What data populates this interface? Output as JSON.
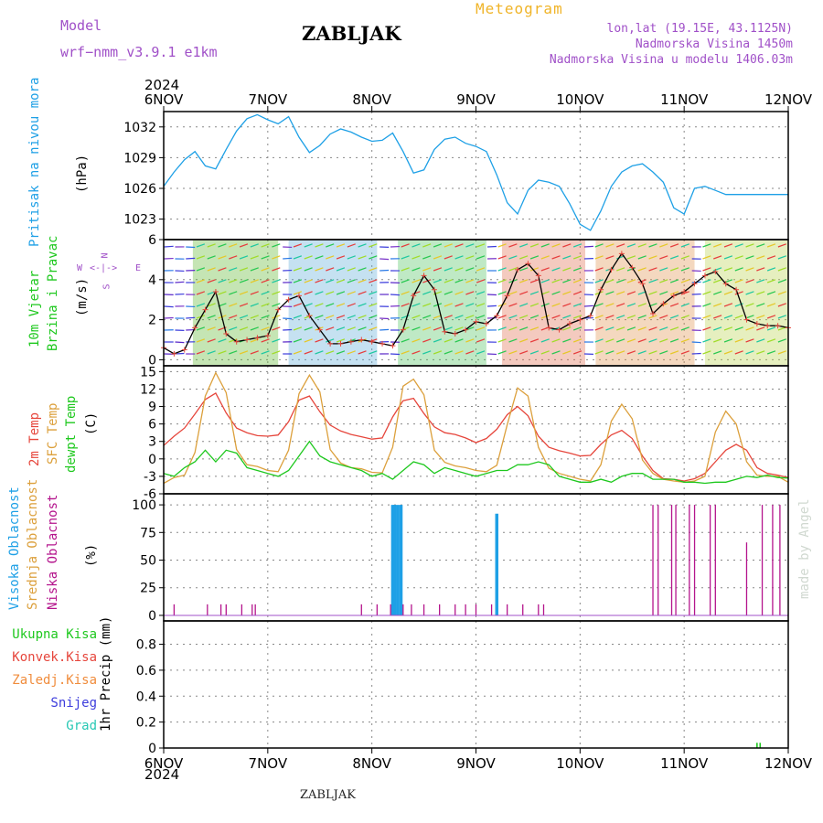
{
  "header": {
    "model_label": "Model",
    "model_name": "wrf−nmm_v3.9.1  e1km",
    "station": "ZABLJAK",
    "meteogram": "Meteogram",
    "lonlat": "lon,lat (19.15E, 43.1125N)",
    "altitude": "Nadmorska Visina 1450m",
    "model_altitude": "Nadmorska Visina u modelu 1406.03m",
    "year_top": "2024",
    "year_bottom": "2024",
    "footer_station": "ZABLJAK",
    "credit": "made by Angel"
  },
  "colors": {
    "pressure": "#1ea0e6",
    "temp2m": "#e6463c",
    "sfc_temp": "#dca03c",
    "dewpt": "#1ec81e",
    "high_cloud": "#1ea0e6",
    "low_cloud": "#b4148c",
    "purple": "#a050c8"
  },
  "chart_data": [
    {
      "type": "line",
      "panel": "pressure",
      "ylabel": "Pritisak na nivou mora",
      "unit": "(hPa)",
      "x_ticks": [
        "6NOV",
        "7NOV",
        "8NOV",
        "9NOV",
        "10NOV",
        "11NOV",
        "12NOV"
      ],
      "yticks": [
        1023,
        1026,
        1029,
        1032
      ],
      "ylim": [
        1021,
        1033.5
      ],
      "grid": true,
      "series": [
        {
          "x": [
            0,
            0.1,
            0.2,
            0.3,
            0.4,
            0.5,
            0.6,
            0.7,
            0.8,
            0.9,
            1.0,
            1.1,
            1.2,
            1.3,
            1.4,
            1.5,
            1.6,
            1.7,
            1.8,
            1.9,
            2.0,
            2.1,
            2.2,
            2.3,
            2.4,
            2.5,
            2.6,
            2.7,
            2.8,
            2.9,
            3.0,
            3.1,
            3.2,
            3.3,
            3.4,
            3.5,
            3.6,
            3.7,
            3.8,
            3.9,
            4.0,
            4.1,
            4.2,
            4.3,
            4.4,
            4.5,
            4.6,
            4.7,
            4.8,
            4.9,
            5.0,
            5.1,
            5.2,
            5.3,
            5.4,
            5.5,
            5.6,
            5.7,
            5.8,
            5.9,
            6.0
          ],
          "values": [
            1026.2,
            1027.6,
            1028.8,
            1029.6,
            1028.2,
            1027.9,
            1029.8,
            1031.6,
            1032.8,
            1033.2,
            1032.7,
            1032.3,
            1033,
            1031,
            1029.5,
            1030.2,
            1031.3,
            1031.8,
            1031.5,
            1031,
            1030.6,
            1030.7,
            1031.4,
            1029.6,
            1027.5,
            1027.8,
            1029.8,
            1030.8,
            1031,
            1030.4,
            1030.1,
            1029.6,
            1027.3,
            1024.6,
            1023.5,
            1025.8,
            1026.8,
            1026.6,
            1026.2,
            1024.5,
            1022.5,
            1021.9,
            1023.8,
            1026.2,
            1027.6,
            1028.2,
            1028.4,
            1027.6,
            1026.6,
            1024.1,
            1023.5,
            1026,
            1026.2,
            1025.8,
            1025.4,
            1025.4,
            1025.4,
            1025.4,
            1025.4,
            1025.4,
            1025.4
          ]
        }
      ]
    },
    {
      "type": "line",
      "panel": "wind",
      "ylabel": "10m Vjetar Brzina i Pravac",
      "unit": "(m/s)",
      "compass": [
        "N",
        "E",
        "S",
        "W"
      ],
      "yticks": [
        0,
        2,
        4,
        6
      ],
      "ylim": [
        -0.3,
        6
      ],
      "grid": true,
      "series": [
        {
          "x": [
            0,
            0.1,
            0.2,
            0.3,
            0.4,
            0.5,
            0.6,
            0.7,
            0.8,
            0.9,
            1.0,
            1.1,
            1.2,
            1.3,
            1.4,
            1.5,
            1.6,
            1.7,
            1.8,
            1.9,
            2.0,
            2.1,
            2.2,
            2.3,
            2.4,
            2.5,
            2.6,
            2.7,
            2.8,
            2.9,
            3.0,
            3.1,
            3.2,
            3.3,
            3.4,
            3.5,
            3.6,
            3.7,
            3.8,
            3.9,
            4.0,
            4.1,
            4.2,
            4.3,
            4.4,
            4.5,
            4.6,
            4.7,
            4.8,
            4.9,
            5.0,
            5.1,
            5.2,
            5.3,
            5.4,
            5.5,
            5.6,
            5.7,
            5.8,
            5.9,
            6.0
          ],
          "values": [
            0.6,
            0.3,
            0.5,
            1.6,
            2.5,
            3.4,
            1.3,
            0.9,
            1.0,
            1.1,
            1.2,
            2.5,
            3.0,
            3.2,
            2.2,
            1.5,
            0.8,
            0.8,
            0.9,
            1.0,
            0.9,
            0.8,
            0.7,
            1.5,
            3.2,
            4.2,
            3.5,
            1.4,
            1.3,
            1.5,
            1.9,
            1.8,
            2.2,
            3.2,
            4.5,
            4.8,
            4.2,
            1.6,
            1.5,
            1.8,
            2.0,
            2.2,
            3.5,
            4.5,
            5.3,
            4.6,
            3.8,
            2.3,
            2.8,
            3.2,
            3.4,
            3.8,
            4.2,
            4.4,
            3.8,
            3.5,
            2.0,
            1.8,
            1.7,
            1.7,
            1.6
          ]
        }
      ]
    },
    {
      "type": "line",
      "panel": "temperature",
      "ylabel": "2m Temp / SFC Temp / dewpt Temp",
      "unit": "(C)",
      "yticks": [
        -6,
        -3,
        0,
        3,
        6,
        9,
        12,
        15
      ],
      "ylim": [
        -6,
        16
      ],
      "grid": true,
      "series": [
        {
          "name": "2m Temp",
          "x": [
            0,
            0.1,
            0.2,
            0.3,
            0.4,
            0.5,
            0.6,
            0.7,
            0.8,
            0.9,
            1.0,
            1.1,
            1.2,
            1.3,
            1.4,
            1.5,
            1.6,
            1.7,
            1.8,
            1.9,
            2.0,
            2.1,
            2.2,
            2.3,
            2.4,
            2.5,
            2.6,
            2.7,
            2.8,
            2.9,
            3.0,
            3.1,
            3.2,
            3.3,
            3.4,
            3.5,
            3.6,
            3.7,
            3.8,
            3.9,
            4.0,
            4.1,
            4.2,
            4.3,
            4.4,
            4.5,
            4.6,
            4.7,
            4.8,
            4.9,
            5.0,
            5.1,
            5.2,
            5.3,
            5.4,
            5.5,
            5.6,
            5.7,
            5.8,
            5.9,
            6.0
          ],
          "values": [
            2.3,
            3.9,
            5.3,
            7.7,
            10.2,
            11.3,
            7.9,
            5.3,
            4.5,
            4.0,
            3.9,
            4.1,
            6.4,
            10.1,
            10.8,
            8.1,
            5.8,
            4.8,
            4.2,
            3.8,
            3.4,
            3.6,
            7.2,
            10.0,
            10.4,
            7.8,
            5.5,
            4.5,
            4.2,
            3.6,
            2.8,
            3.5,
            5.1,
            7.6,
            9.0,
            7.4,
            3.9,
            2.0,
            1.4,
            1.0,
            0.5,
            0.6,
            2.5,
            4.1,
            4.9,
            3.5,
            0.5,
            -2.0,
            -3.4,
            -3.5,
            -3.8,
            -3.4,
            -2.5,
            -0.5,
            1.5,
            2.5,
            1.5,
            -1.5,
            -2.5,
            -2.8,
            -3.2
          ]
        },
        {
          "name": "SFC Temp",
          "x": [
            0,
            0.1,
            0.2,
            0.3,
            0.4,
            0.5,
            0.6,
            0.7,
            0.8,
            0.9,
            1.0,
            1.1,
            1.2,
            1.3,
            1.4,
            1.5,
            1.6,
            1.7,
            1.8,
            1.9,
            2.0,
            2.1,
            2.2,
            2.3,
            2.4,
            2.5,
            2.6,
            2.7,
            2.8,
            2.9,
            3.0,
            3.1,
            3.2,
            3.3,
            3.4,
            3.5,
            3.6,
            3.7,
            3.8,
            3.9,
            4.0,
            4.1,
            4.2,
            4.3,
            4.4,
            4.5,
            4.6,
            4.7,
            4.8,
            4.9,
            5.0,
            5.1,
            5.2,
            5.3,
            5.4,
            5.5,
            5.6,
            5.7,
            5.8,
            5.9,
            6.0
          ],
          "values": [
            -4.2,
            -3.2,
            -2.8,
            1.1,
            10.8,
            14.8,
            11.4,
            1.6,
            -1.0,
            -1.3,
            -2.0,
            -2.2,
            1.5,
            11.2,
            14.4,
            11.5,
            1.6,
            -0.7,
            -1.5,
            -1.7,
            -2.3,
            -2.4,
            2.0,
            12.5,
            13.7,
            11.0,
            1.5,
            -0.6,
            -1.2,
            -1.5,
            -2.0,
            -2.2,
            -1.1,
            5.9,
            12.2,
            10.8,
            2.0,
            -1.6,
            -2.5,
            -3.0,
            -3.5,
            -3.8,
            -1.0,
            6.5,
            9.4,
            6.9,
            -0.2,
            -2.5,
            -3.5,
            -3.8,
            -4.0,
            -3.8,
            -3.0,
            4.6,
            8.2,
            6.0,
            -0.5,
            -2.8,
            -3.0,
            -3.0,
            -4.0
          ]
        },
        {
          "name": "dewpt Temp",
          "x": [
            0,
            0.1,
            0.2,
            0.3,
            0.4,
            0.5,
            0.6,
            0.7,
            0.8,
            0.9,
            1.0,
            1.1,
            1.2,
            1.3,
            1.4,
            1.5,
            1.6,
            1.7,
            1.8,
            1.9,
            2.0,
            2.1,
            2.2,
            2.3,
            2.4,
            2.5,
            2.6,
            2.7,
            2.8,
            2.9,
            3.0,
            3.1,
            3.2,
            3.3,
            3.4,
            3.5,
            3.6,
            3.7,
            3.8,
            3.9,
            4.0,
            4.1,
            4.2,
            4.3,
            4.4,
            4.5,
            4.6,
            4.7,
            4.8,
            4.9,
            5.0,
            5.1,
            5.2,
            5.3,
            5.4,
            5.5,
            5.6,
            5.7,
            5.8,
            5.9,
            6.0
          ],
          "values": [
            -2.5,
            -3.0,
            -1.5,
            -0.5,
            1.5,
            -0.5,
            1.5,
            1.0,
            -1.5,
            -2.0,
            -2.5,
            -3.0,
            -2.0,
            0.5,
            3.0,
            0.5,
            -0.5,
            -1.0,
            -1.5,
            -2.0,
            -3.0,
            -2.5,
            -3.5,
            -2.0,
            -0.5,
            -1.0,
            -2.5,
            -1.5,
            -2.0,
            -2.5,
            -3.0,
            -2.5,
            -2.0,
            -2.0,
            -1.0,
            -1.0,
            -0.5,
            -1.0,
            -3.0,
            -3.5,
            -4.0,
            -4.0,
            -3.5,
            -4.0,
            -3.0,
            -2.5,
            -2.5,
            -3.5,
            -3.5,
            -3.5,
            -4.0,
            -4.0,
            -4.2,
            -4.0,
            -4.0,
            -3.5,
            -3.0,
            -3.2,
            -2.8,
            -3.2,
            -3.3
          ]
        }
      ]
    },
    {
      "type": "bar",
      "panel": "clouds",
      "ylabel": "Visoka Oblacnost / Srednja Oblacnost / Niska Oblacnost",
      "unit": "(%)",
      "yticks": [
        0,
        25,
        50,
        75,
        100
      ],
      "ylim": [
        -5,
        110
      ],
      "grid": true,
      "series": [
        {
          "name": "Visoka Oblacnost",
          "x": [
            2.2,
            2.22,
            2.25,
            2.28,
            3.2
          ],
          "values": [
            100,
            100,
            100,
            100,
            92
          ]
        },
        {
          "name": "Niska Oblacnost",
          "x": [
            0.1,
            0.42,
            0.55,
            0.6,
            0.75,
            0.85,
            0.88,
            1.9,
            2.05,
            2.18,
            2.3,
            2.38,
            2.5,
            2.65,
            2.8,
            2.9,
            3.0,
            3.15,
            3.3,
            3.45,
            3.6,
            3.65,
            4.7,
            4.75,
            4.88,
            4.92,
            5.05,
            5.1,
            5.25,
            5.3,
            5.6,
            5.75,
            5.85,
            5.92
          ],
          "values": [
            10,
            10,
            10,
            10,
            10,
            10,
            10,
            10,
            10,
            10,
            10,
            10,
            10,
            10,
            10,
            10,
            10,
            10,
            10,
            10,
            10,
            10,
            100,
            100,
            100,
            100,
            100,
            100,
            100,
            100,
            66,
            100,
            100,
            100
          ]
        }
      ]
    },
    {
      "type": "bar",
      "panel": "precip",
      "ylabel": "1hr Precip",
      "unit": "(mm)",
      "legend": [
        "Ukupna  Kisa",
        "Konvek.Kisa",
        "Zaledj.Kisa",
        "Snijeg",
        "Grad"
      ],
      "yticks": [
        0,
        0.2,
        0.4,
        0.6,
        0.8
      ],
      "ylim": [
        0,
        0.98
      ],
      "grid": true,
      "series": [
        {
          "name": "Ukupna  Kisa",
          "x": [
            5.7,
            5.73
          ],
          "values": [
            0.04,
            0.04
          ]
        }
      ]
    }
  ]
}
